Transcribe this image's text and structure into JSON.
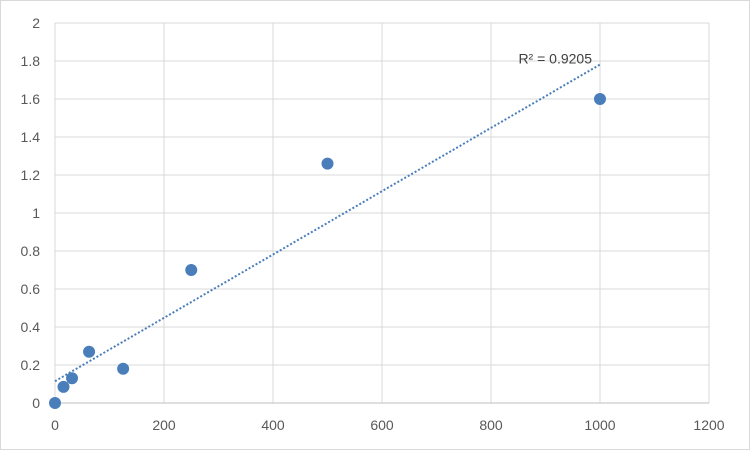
{
  "chart_data": {
    "type": "scatter",
    "title": "",
    "xlabel": "",
    "ylabel": "",
    "xlim": [
      0,
      1200
    ],
    "ylim": [
      0,
      2
    ],
    "x_ticks": [
      0,
      200,
      400,
      600,
      800,
      1000,
      1200
    ],
    "y_ticks": [
      0,
      0.2,
      0.4,
      0.6,
      0.8,
      1,
      1.2,
      1.4,
      1.6,
      1.8,
      2
    ],
    "x_tick_labels": [
      "0",
      "200",
      "400",
      "600",
      "800",
      "1000",
      "1200"
    ],
    "y_tick_labels": [
      "0",
      "0.2",
      "0.4",
      "0.6",
      "0.8",
      "1",
      "1.2",
      "1.4",
      "1.6",
      "1.8",
      "2"
    ],
    "grid": true,
    "legend": "none",
    "series": [
      {
        "x": [
          0,
          15.6,
          31.25,
          62.5,
          125,
          250,
          500,
          1000
        ],
        "y": [
          0,
          0.085,
          0.13,
          0.27,
          0.18,
          0.7,
          1.26,
          1.6
        ],
        "color": "#4a7ebb"
      }
    ],
    "trendline": {
      "type": "linear",
      "x_range": [
        0,
        1000
      ],
      "color": "#4a7ebb",
      "style": "dotted",
      "label": "R² = 0.9205"
    },
    "colors": {
      "grid": "#d9d9d9",
      "axis": "#bfbfbf",
      "marker": "#4a7ebb"
    }
  }
}
